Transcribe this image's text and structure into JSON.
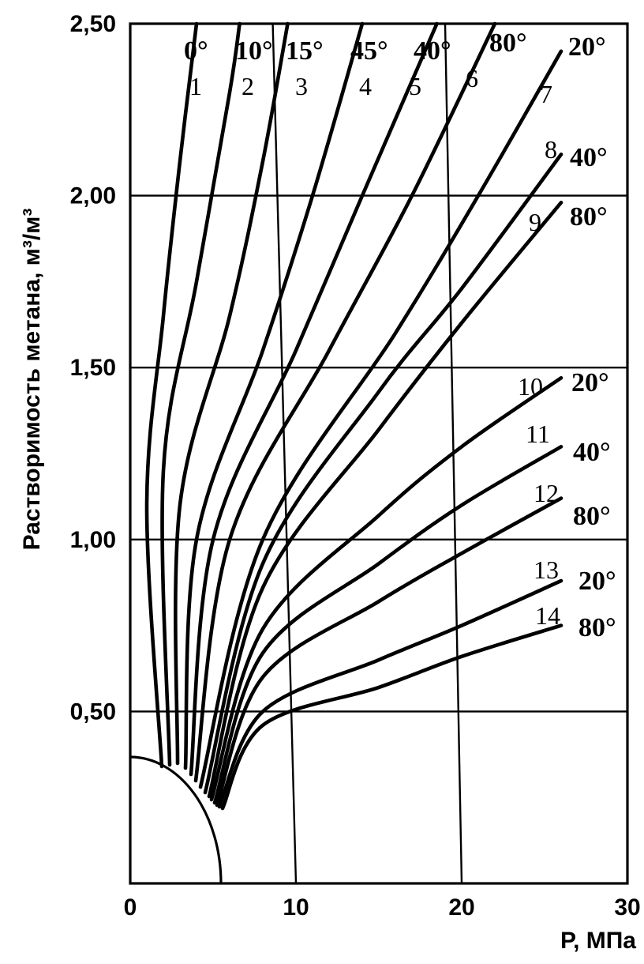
{
  "chart_data": {
    "type": "line",
    "title": "",
    "xlabel": "P, МПа",
    "ylabel": "Растворимость метана, м³/м³",
    "xlim": [
      0,
      30
    ],
    "ylim": [
      0,
      2.5
    ],
    "x_ticks": [
      "0",
      "10",
      "20",
      "30"
    ],
    "y_ticks": [
      "0,50",
      "1,00",
      "1,50",
      "2,00",
      "2,50"
    ],
    "grid": true,
    "series": [
      {
        "name": "1",
        "temp": "0°",
        "x": [
          0,
          1,
          2,
          3,
          4
        ],
        "y": [
          0.36,
          1.1,
          1.65,
          2.1,
          2.5
        ]
      },
      {
        "name": "2",
        "temp": "10°",
        "x": [
          0,
          2,
          4,
          6,
          6.6
        ],
        "y": [
          0.36,
          1.2,
          1.75,
          2.3,
          2.5
        ]
      },
      {
        "name": "3",
        "temp": "15°",
        "x": [
          0,
          3,
          6,
          8,
          9.5
        ],
        "y": [
          0.36,
          1.1,
          1.65,
          2.1,
          2.5
        ]
      },
      {
        "name": "4",
        "temp": "45°",
        "x": [
          0,
          4,
          8,
          11,
          14
        ],
        "y": [
          0.36,
          1.0,
          1.55,
          2.0,
          2.5
        ]
      },
      {
        "name": "5",
        "temp": "40°",
        "x": [
          0,
          5,
          10,
          14,
          18.5
        ],
        "y": [
          0.36,
          1.0,
          1.55,
          2.0,
          2.5
        ]
      },
      {
        "name": "6",
        "temp": "80°",
        "x": [
          0,
          6,
          12,
          17,
          22
        ],
        "y": [
          0.36,
          1.0,
          1.55,
          2.0,
          2.5
        ]
      },
      {
        "name": "7",
        "temp": "20°",
        "x": [
          0,
          8,
          16,
          21,
          26
        ],
        "y": [
          0.36,
          1.0,
          1.6,
          2.0,
          2.42
        ]
      },
      {
        "name": "8",
        "temp": "40°",
        "x": [
          0,
          8,
          15,
          20,
          26
        ],
        "y": [
          0.36,
          0.93,
          1.43,
          1.73,
          2.12
        ]
      },
      {
        "name": "9",
        "temp": "80°",
        "x": [
          0,
          8,
          15,
          20,
          26
        ],
        "y": [
          0.36,
          0.86,
          1.32,
          1.63,
          1.98
        ]
      },
      {
        "name": "10",
        "temp": "20°",
        "x": [
          0,
          8,
          15,
          20,
          26
        ],
        "y": [
          0.36,
          0.74,
          1.07,
          1.27,
          1.47
        ]
      },
      {
        "name": "11",
        "temp": "40°",
        "x": [
          0,
          8,
          15,
          20,
          26
        ],
        "y": [
          0.36,
          0.67,
          0.93,
          1.1,
          1.27
        ]
      },
      {
        "name": "12",
        "temp": "80°",
        "x": [
          0,
          8,
          15,
          20,
          26
        ],
        "y": [
          0.36,
          0.6,
          0.82,
          0.96,
          1.12
        ]
      },
      {
        "name": "13",
        "temp": "20°",
        "x": [
          0,
          8,
          15,
          20,
          26
        ],
        "y": [
          0.36,
          0.5,
          0.65,
          0.75,
          0.88
        ]
      },
      {
        "name": "14",
        "temp": "80°",
        "x": [
          0,
          8,
          15,
          20,
          26
        ],
        "y": [
          0.36,
          0.46,
          0.57,
          0.66,
          0.75
        ]
      }
    ]
  }
}
